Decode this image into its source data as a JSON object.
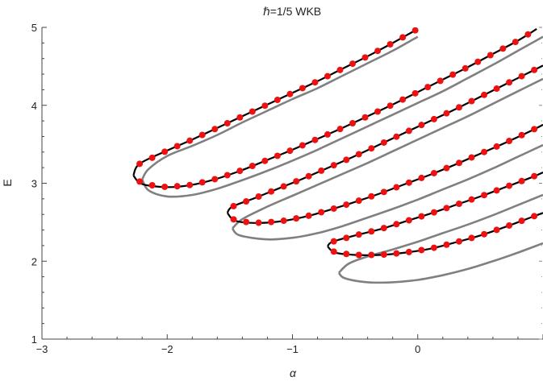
{
  "chart_data": {
    "type": "line",
    "title": "ℏ=1/5 WKB",
    "xlabel": "α",
    "ylabel": "E",
    "xlim": [
      -3,
      1
    ],
    "ylim": [
      1,
      5
    ],
    "xticks": [
      -3,
      -2,
      -1,
      0
    ],
    "yticks": [
      1,
      2,
      3,
      4,
      5
    ],
    "frame": "left-bottom",
    "grid": false,
    "series": [
      {
        "style": "gray",
        "color": "#808080",
        "branches": [
          {
            "alpha_turn": -2.2,
            "E_turn": 3.05,
            "points": [
              [
                -2.2,
                3.05
              ],
              [
                -2.15,
                3.18
              ],
              [
                -2.0,
                3.35
              ],
              [
                -1.8,
                3.48
              ],
              [
                -1.6,
                3.62
              ],
              [
                -1.4,
                3.78
              ],
              [
                -1.2,
                3.93
              ],
              [
                -1.0,
                4.08
              ],
              [
                -0.8,
                4.22
              ],
              [
                -0.6,
                4.38
              ],
              [
                -0.4,
                4.54
              ],
              [
                -0.2,
                4.7
              ],
              [
                0.0,
                4.88
              ]
            ]
          },
          {
            "points": [
              [
                -2.2,
                3.05
              ],
              [
                -2.15,
                2.91
              ],
              [
                -2.0,
                2.83
              ],
              [
                -1.8,
                2.85
              ],
              [
                -1.6,
                2.93
              ],
              [
                -1.4,
                3.04
              ],
              [
                -1.2,
                3.16
              ],
              [
                -1.0,
                3.29
              ],
              [
                -0.8,
                3.43
              ],
              [
                -0.6,
                3.58
              ],
              [
                -0.4,
                3.73
              ],
              [
                -0.2,
                3.88
              ],
              [
                0.0,
                4.03
              ],
              [
                0.2,
                4.18
              ],
              [
                0.4,
                4.35
              ],
              [
                0.6,
                4.52
              ],
              [
                0.8,
                4.7
              ],
              [
                1.0,
                4.88
              ]
            ]
          },
          {
            "points": [
              [
                -1.48,
                2.42
              ],
              [
                -1.4,
                2.54
              ],
              [
                -1.2,
                2.7
              ],
              [
                -1.0,
                2.84
              ],
              [
                -0.8,
                2.98
              ],
              [
                -0.6,
                3.12
              ],
              [
                -0.4,
                3.26
              ],
              [
                -0.2,
                3.41
              ],
              [
                0.0,
                3.56
              ],
              [
                0.2,
                3.71
              ],
              [
                0.4,
                3.86
              ],
              [
                0.6,
                4.02
              ],
              [
                0.8,
                4.18
              ],
              [
                1.0,
                4.34
              ]
            ]
          },
          {
            "points": [
              [
                -1.48,
                2.42
              ],
              [
                -1.42,
                2.33
              ],
              [
                -1.2,
                2.28
              ],
              [
                -1.0,
                2.3
              ],
              [
                -0.8,
                2.36
              ],
              [
                -0.6,
                2.45
              ],
              [
                -0.4,
                2.56
              ],
              [
                -0.2,
                2.67
              ],
              [
                0.0,
                2.79
              ],
              [
                0.2,
                2.92
              ],
              [
                0.4,
                3.05
              ],
              [
                0.6,
                3.19
              ],
              [
                0.8,
                3.34
              ],
              [
                1.0,
                3.49
              ]
            ]
          },
          {
            "points": [
              [
                -0.63,
                1.85
              ],
              [
                -0.55,
                1.97
              ],
              [
                -0.4,
                2.06
              ],
              [
                -0.2,
                2.15
              ],
              [
                0.0,
                2.25
              ],
              [
                0.2,
                2.36
              ],
              [
                0.4,
                2.47
              ],
              [
                0.6,
                2.59
              ],
              [
                0.8,
                2.72
              ],
              [
                1.0,
                2.85
              ]
            ]
          },
          {
            "points": [
              [
                -0.63,
                1.85
              ],
              [
                -0.58,
                1.78
              ],
              [
                -0.4,
                1.73
              ],
              [
                -0.2,
                1.73
              ],
              [
                0.0,
                1.76
              ],
              [
                0.2,
                1.82
              ],
              [
                0.4,
                1.9
              ],
              [
                0.6,
                2.0
              ],
              [
                0.8,
                2.11
              ],
              [
                1.0,
                2.23
              ]
            ]
          }
        ]
      },
      {
        "style": "black",
        "color": "#000000",
        "branches": [
          {
            "points": [
              [
                -2.27,
                3.1
              ],
              [
                -2.22,
                3.25
              ],
              [
                -2.0,
                3.42
              ],
              [
                -1.8,
                3.56
              ],
              [
                -1.6,
                3.71
              ],
              [
                -1.4,
                3.86
              ],
              [
                -1.2,
                4.01
              ],
              [
                -1.0,
                4.16
              ],
              [
                -0.8,
                4.31
              ],
              [
                -0.6,
                4.47
              ],
              [
                -0.4,
                4.63
              ],
              [
                -0.2,
                4.8
              ],
              [
                0.0,
                4.98
              ]
            ]
          },
          {
            "points": [
              [
                -2.27,
                3.1
              ],
              [
                -2.2,
                2.99
              ],
              [
                -2.0,
                2.95
              ],
              [
                -1.8,
                2.98
              ],
              [
                -1.6,
                3.06
              ],
              [
                -1.4,
                3.17
              ],
              [
                -1.2,
                3.3
              ],
              [
                -1.0,
                3.43
              ],
              [
                -0.8,
                3.57
              ],
              [
                -0.6,
                3.71
              ],
              [
                -0.4,
                3.86
              ],
              [
                -0.2,
                4.01
              ],
              [
                0.0,
                4.17
              ],
              [
                0.2,
                4.33
              ],
              [
                0.4,
                4.49
              ],
              [
                0.6,
                4.66
              ],
              [
                0.8,
                4.83
              ],
              [
                0.95,
                4.98
              ]
            ]
          },
          {
            "points": [
              [
                -1.52,
                2.62
              ],
              [
                -1.48,
                2.7
              ],
              [
                -1.3,
                2.81
              ],
              [
                -1.1,
                2.94
              ],
              [
                -0.9,
                3.07
              ],
              [
                -0.7,
                3.21
              ],
              [
                -0.5,
                3.35
              ],
              [
                -0.3,
                3.5
              ],
              [
                -0.1,
                3.65
              ],
              [
                0.1,
                3.8
              ],
              [
                0.3,
                3.95
              ],
              [
                0.5,
                4.11
              ],
              [
                0.7,
                4.27
              ],
              [
                0.9,
                4.43
              ],
              [
                1.0,
                4.51
              ]
            ]
          },
          {
            "points": [
              [
                -1.52,
                2.62
              ],
              [
                -1.46,
                2.52
              ],
              [
                -1.3,
                2.49
              ],
              [
                -1.1,
                2.51
              ],
              [
                -0.9,
                2.57
              ],
              [
                -0.7,
                2.66
              ],
              [
                -0.5,
                2.76
              ],
              [
                -0.3,
                2.87
              ],
              [
                -0.1,
                2.99
              ],
              [
                0.1,
                3.11
              ],
              [
                0.3,
                3.24
              ],
              [
                0.5,
                3.38
              ],
              [
                0.7,
                3.52
              ],
              [
                0.9,
                3.67
              ],
              [
                1.0,
                3.75
              ]
            ]
          },
          {
            "points": [
              [
                -0.72,
                2.19
              ],
              [
                -0.68,
                2.25
              ],
              [
                -0.5,
                2.33
              ],
              [
                -0.3,
                2.41
              ],
              [
                -0.1,
                2.51
              ],
              [
                0.1,
                2.61
              ],
              [
                0.3,
                2.72
              ],
              [
                0.5,
                2.83
              ],
              [
                0.7,
                2.95
              ],
              [
                0.9,
                3.07
              ],
              [
                1.0,
                3.14
              ]
            ]
          },
          {
            "points": [
              [
                -0.72,
                2.19
              ],
              [
                -0.66,
                2.11
              ],
              [
                -0.5,
                2.08
              ],
              [
                -0.3,
                2.08
              ],
              [
                -0.1,
                2.11
              ],
              [
                0.1,
                2.16
              ],
              [
                0.3,
                2.24
              ],
              [
                0.5,
                2.33
              ],
              [
                0.7,
                2.44
              ],
              [
                0.9,
                2.56
              ],
              [
                1.0,
                2.62
              ]
            ]
          }
        ]
      },
      {
        "style": "red-points",
        "color": "#ee1111",
        "spacing": 0.1
      }
    ]
  }
}
